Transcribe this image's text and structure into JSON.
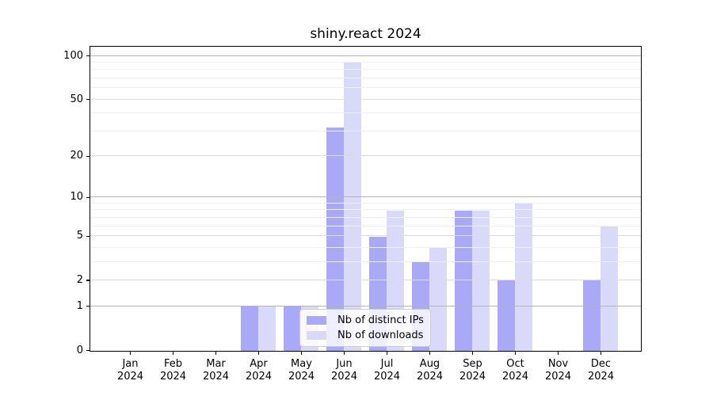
{
  "chart_data": {
    "type": "bar",
    "title": "shiny.react 2024",
    "categories": [
      {
        "month": "Jan",
        "year": "2024"
      },
      {
        "month": "Feb",
        "year": "2024"
      },
      {
        "month": "Mar",
        "year": "2024"
      },
      {
        "month": "Apr",
        "year": "2024"
      },
      {
        "month": "May",
        "year": "2024"
      },
      {
        "month": "Jun",
        "year": "2024"
      },
      {
        "month": "Jul",
        "year": "2024"
      },
      {
        "month": "Aug",
        "year": "2024"
      },
      {
        "month": "Sep",
        "year": "2024"
      },
      {
        "month": "Oct",
        "year": "2024"
      },
      {
        "month": "Nov",
        "year": "2024"
      },
      {
        "month": "Dec",
        "year": "2024"
      }
    ],
    "series": [
      {
        "name": "Nb of distinct IPs",
        "color": "#a9a9f7",
        "values": [
          0,
          0,
          0,
          1,
          1,
          32,
          5,
          3,
          8,
          2,
          0,
          2
        ]
      },
      {
        "name": "Nb of downloads",
        "color": "#d9d9fa",
        "values": [
          0,
          0,
          0,
          1,
          1,
          92,
          8,
          4,
          8,
          9,
          0,
          6
        ]
      }
    ],
    "xlabel": "",
    "ylabel": "",
    "y_scale": "log1p",
    "ylim": [
      0,
      115
    ],
    "y_ticks": [
      100,
      50,
      20,
      10,
      5,
      2,
      1,
      0
    ],
    "y_minor_ticks": [
      90,
      80,
      70,
      60,
      40,
      30,
      9,
      8,
      7,
      6,
      4,
      3
    ],
    "y_strong_gridlines": [
      100,
      10,
      1
    ],
    "grid": true,
    "legend_position": "lower-center",
    "colors": {
      "grid_strong": "#b4b4b4",
      "grid_major": "#dcdcdc",
      "grid_minor": "#f0f0f0",
      "spine": "#000000",
      "legend_border": "#cccccc",
      "legend_bg": "rgba(255,255,255,0.8)",
      "text": "#000000"
    }
  }
}
